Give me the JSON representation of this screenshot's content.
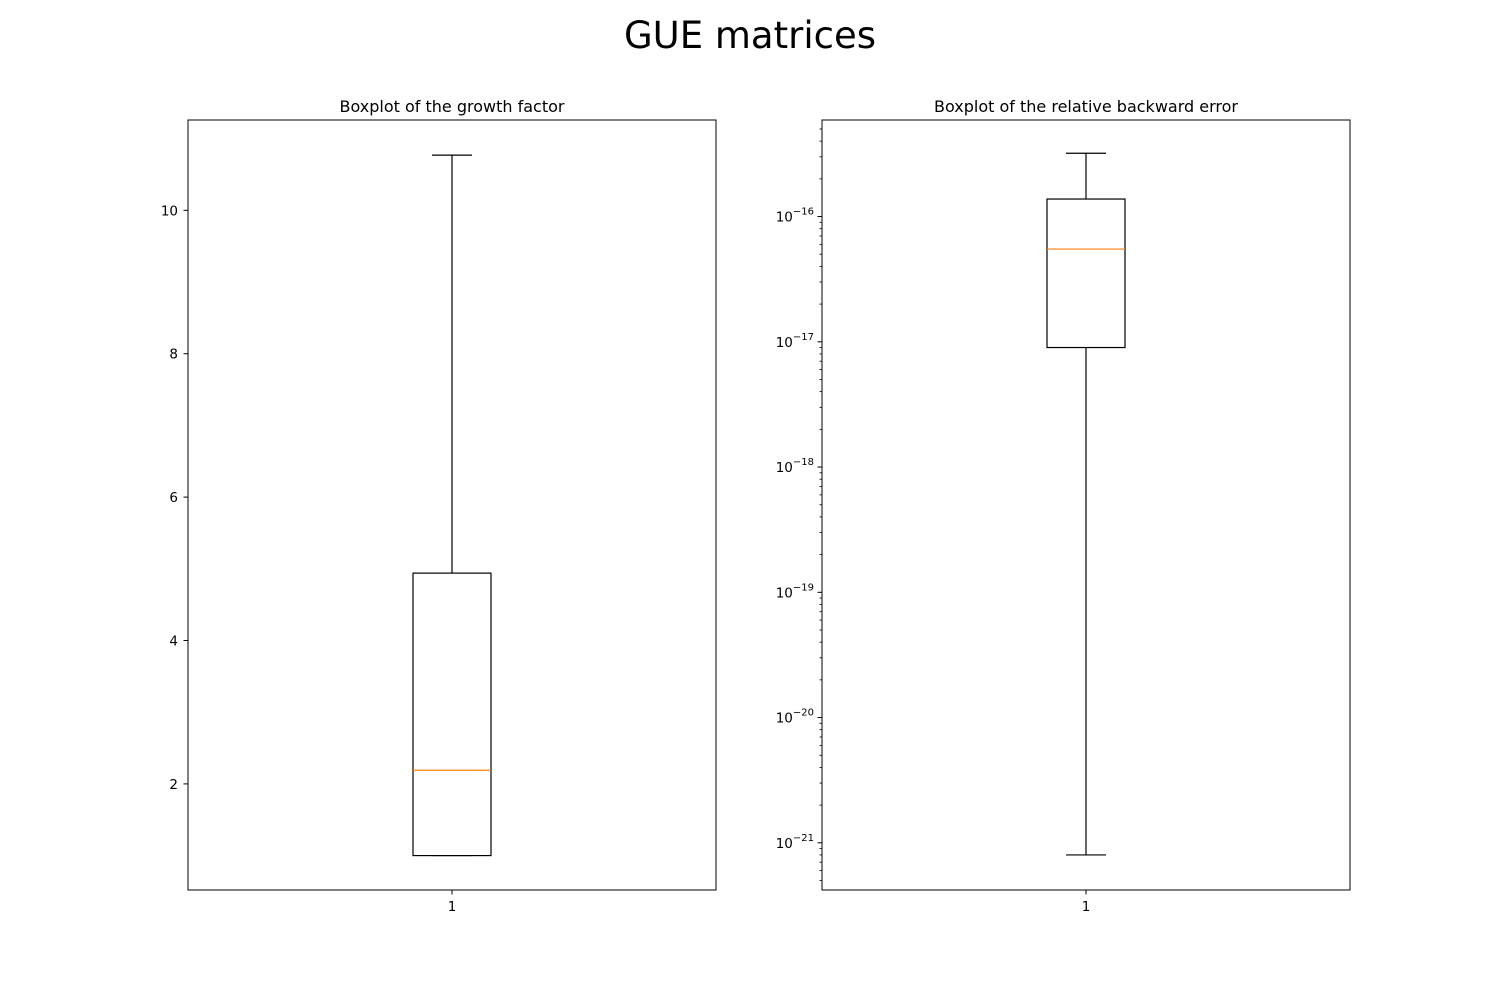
{
  "figure": {
    "title": "GUE matrices"
  },
  "chart_data": [
    {
      "type": "boxplot",
      "title": "Boxplot of the growth factor",
      "xlabel": "",
      "ylabel": "",
      "yscale": "linear",
      "ylim": [
        0.52,
        11.26
      ],
      "yticks": [
        2,
        4,
        6,
        8,
        10
      ],
      "ytick_labels": [
        "2",
        "4",
        "6",
        "8",
        "10"
      ],
      "categories": [
        "1"
      ],
      "boxes": [
        {
          "category": "1",
          "whisker_low": 1.0,
          "q1": 1.0,
          "median": 2.19,
          "q3": 4.94,
          "whisker_high": 10.77
        }
      ],
      "box_color": "#000000",
      "median_color": "#ff7f0e",
      "grid": false
    },
    {
      "type": "boxplot",
      "title": "Boxplot of the relative backward error",
      "xlabel": "",
      "ylabel": "",
      "yscale": "log",
      "ylim": [
        4.2e-22,
        5.9e-16
      ],
      "yticks": [
        1e-21,
        1e-20,
        1e-19,
        1e-18,
        1e-17,
        1e-16
      ],
      "ytick_labels": [
        {
          "base": "10",
          "exp": "−21"
        },
        {
          "base": "10",
          "exp": "−20"
        },
        {
          "base": "10",
          "exp": "−19"
        },
        {
          "base": "10",
          "exp": "−18"
        },
        {
          "base": "10",
          "exp": "−17"
        },
        {
          "base": "10",
          "exp": "−16"
        }
      ],
      "categories": [
        "1"
      ],
      "boxes": [
        {
          "category": "1",
          "whisker_low": 8e-22,
          "q1": 9e-18,
          "median": 5.5e-17,
          "q3": 1.38e-16,
          "whisker_high": 3.2e-16
        }
      ],
      "box_color": "#000000",
      "median_color": "#ff7f0e",
      "grid": false
    }
  ]
}
